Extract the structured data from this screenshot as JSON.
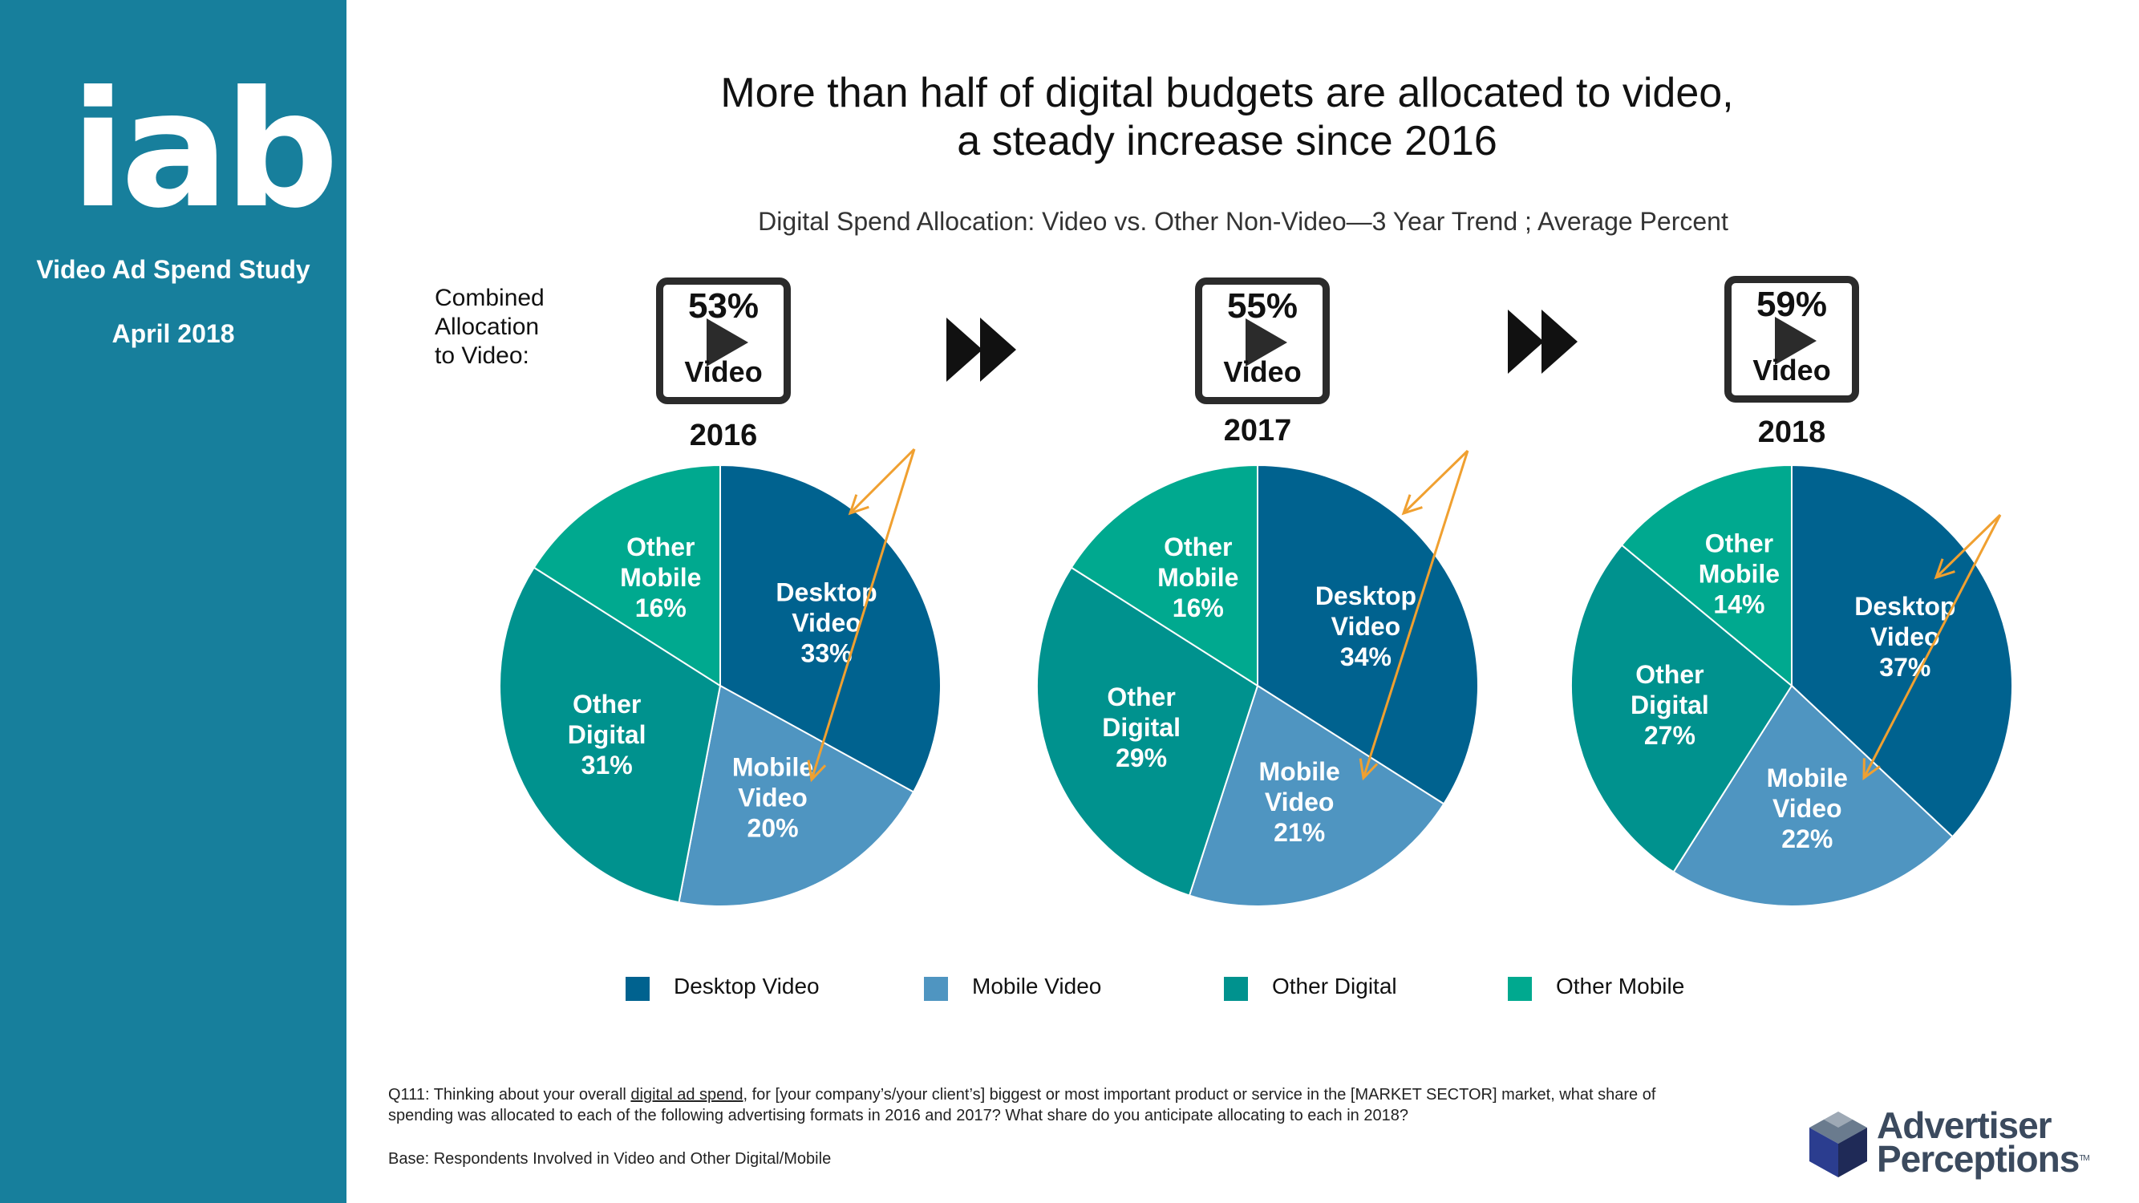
{
  "sidebar": {
    "logo_text": "iab.",
    "study_title": "Video Ad Spend Study",
    "study_date": "April 2018"
  },
  "header": {
    "headline_line1": "More than half of digital budgets are allocated to video,",
    "headline_line2": "a steady increase since 2016",
    "subtitle": "Digital Spend Allocation:  Video vs. Other Non-Video—3 Year Trend ; Average Percent"
  },
  "combined_label": [
    "Combined",
    "Allocation",
    "to Video:"
  ],
  "video_boxes": [
    {
      "pct": "53%",
      "label": "Video",
      "year": "2016"
    },
    {
      "pct": "55%",
      "label": "Video",
      "year": "2017"
    },
    {
      "pct": "59%",
      "label": "Video",
      "year": "2018"
    }
  ],
  "colors": {
    "desktop_video": "#00628f",
    "mobile_video": "#4f95c1",
    "other_digital": "#00928e",
    "other_mobile": "#00a98f",
    "sidebar": "#177f9c",
    "arrow": "#f0a030"
  },
  "chart_data": [
    {
      "type": "pie",
      "title": "2016",
      "categories": [
        "Desktop Video",
        "Mobile Video",
        "Other Digital",
        "Other Mobile"
      ],
      "values": [
        33,
        20,
        31,
        16
      ],
      "labels": [
        [
          "Desktop",
          "Video",
          "33%"
        ],
        [
          "Mobile",
          "Video",
          "20%"
        ],
        [
          "Other",
          "Digital",
          "31%"
        ],
        [
          "Other",
          "Mobile",
          "16%"
        ]
      ]
    },
    {
      "type": "pie",
      "title": "2017",
      "categories": [
        "Desktop Video",
        "Mobile Video",
        "Other Digital",
        "Other Mobile"
      ],
      "values": [
        34,
        21,
        29,
        16
      ],
      "labels": [
        [
          "Desktop",
          "Video",
          "34%"
        ],
        [
          "Mobile",
          "Video",
          "21%"
        ],
        [
          "Other",
          "Digital",
          "29%"
        ],
        [
          "Other",
          "Mobile",
          "16%"
        ]
      ]
    },
    {
      "type": "pie",
      "title": "2018",
      "categories": [
        "Desktop Video",
        "Mobile Video",
        "Other Digital",
        "Other Mobile"
      ],
      "values": [
        37,
        22,
        27,
        14
      ],
      "labels": [
        [
          "Desktop",
          "Video",
          "37%"
        ],
        [
          "Mobile",
          "Video",
          "22%"
        ],
        [
          "Other",
          "Digital",
          "27%"
        ],
        [
          "Other",
          "Mobile",
          "14%"
        ]
      ]
    }
  ],
  "legend": [
    "Desktop Video",
    "Mobile Video",
    "Other Digital",
    "Other Mobile"
  ],
  "footnote": {
    "prefix": "Q111: Thinking about your overall ",
    "underlined": "digital ad spend",
    "suffix": ", for [your company’s/your client’s] biggest or most important product or service in the [MARKET SECTOR] market, what share of spending was allocated to each of the following advertising formats in 2016 and 2017?  What share do you anticipate allocating to each in 2018?",
    "base": "Base:  Respondents Involved in Video and Other Digital/Mobile"
  },
  "ap_logo": {
    "line1": "Advertiser",
    "line2": "Perceptions",
    "tm": "TM"
  }
}
